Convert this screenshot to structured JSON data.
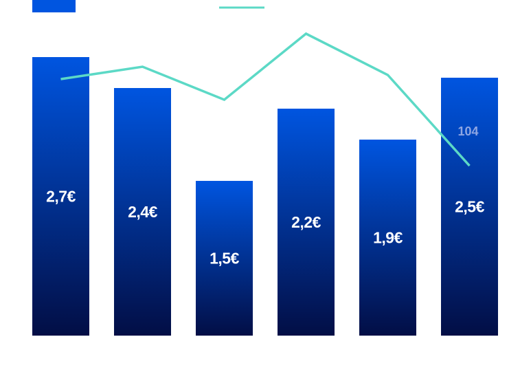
{
  "chart_data": {
    "type": "bar",
    "categories": [
      "",
      "",
      "",
      "",
      "",
      ""
    ],
    "series": [
      {
        "type": "bar",
        "values": [
          2.7,
          2.4,
          1.5,
          2.2,
          1.9,
          2.5
        ],
        "labels": [
          "2,7€",
          "2,4€",
          "1,5€",
          "2,2€",
          "1,9€",
          "2,5€"
        ],
        "color": "#0055e0"
      },
      {
        "type": "line",
        "values": [
          125,
          128,
          120,
          136,
          126,
          104
        ],
        "labels": [
          "",
          "",
          "",
          "",
          "",
          "104"
        ],
        "color": "#5cd9c6"
      }
    ],
    "legend": {
      "position": "top-left"
    },
    "grid": false,
    "colors": {
      "bar_top": "#0055e0",
      "bar_bottom": "#020e45",
      "line": "#5cd9c6",
      "point_label": "#8fa6e3"
    }
  }
}
